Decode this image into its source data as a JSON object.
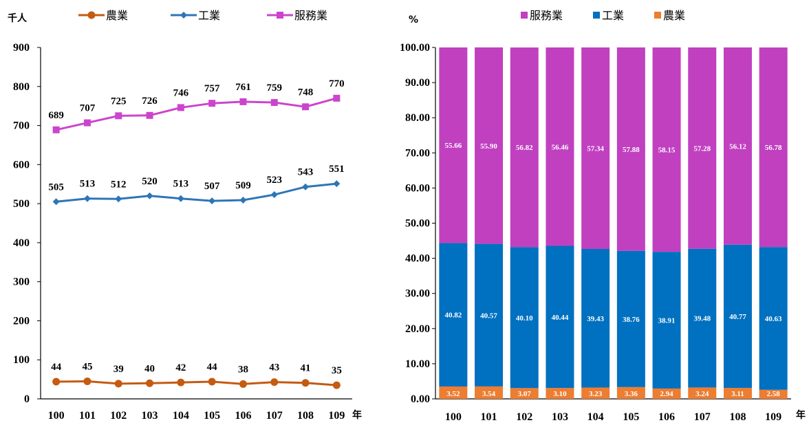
{
  "chart_data": [
    {
      "type": "line",
      "ylabel": "千人",
      "xunit": "年",
      "categories": [
        "100",
        "101",
        "102",
        "103",
        "104",
        "105",
        "106",
        "107",
        "108",
        "109"
      ],
      "ylim": [
        0,
        900
      ],
      "yticks": [
        "0",
        "100",
        "200",
        "300",
        "400",
        "500",
        "600",
        "700",
        "800",
        "900"
      ],
      "legend_position": "top",
      "series": [
        {
          "name": "農業",
          "color": "#c55a11",
          "marker": "circle",
          "values": [
            44,
            45,
            39,
            40,
            42,
            44,
            38,
            43,
            41,
            35
          ]
        },
        {
          "name": "工業",
          "color": "#2e75b6",
          "marker": "diamond",
          "values": [
            505,
            513,
            512,
            520,
            513,
            507,
            509,
            523,
            543,
            551
          ]
        },
        {
          "name": "服務業",
          "color": "#cc44cc",
          "marker": "square",
          "values": [
            689,
            707,
            725,
            726,
            746,
            757,
            761,
            759,
            748,
            770
          ]
        }
      ]
    },
    {
      "type": "bar",
      "stacked": true,
      "ylabel": "%",
      "xunit": "年",
      "categories": [
        "100",
        "101",
        "102",
        "103",
        "104",
        "105",
        "106",
        "107",
        "108",
        "109"
      ],
      "ylim": [
        0,
        100
      ],
      "yticks": [
        "0.00",
        "10.00",
        "20.00",
        "30.00",
        "40.00",
        "50.00",
        "60.00",
        "70.00",
        "80.00",
        "90.00",
        "100.00"
      ],
      "legend_position": "top",
      "legend_order": [
        "服務業",
        "工業",
        "農業"
      ],
      "series": [
        {
          "name": "農業",
          "color": "#ed7d31",
          "values": [
            "3.52",
            "3.54",
            "3.07",
            "3.10",
            "3.23",
            "3.36",
            "2.94",
            "3.24",
            "3.11",
            "2.58"
          ]
        },
        {
          "name": "工業",
          "color": "#0070c0",
          "values": [
            "40.82",
            "40.57",
            "40.10",
            "40.44",
            "39.43",
            "38.76",
            "38.91",
            "39.48",
            "40.77",
            "40.63"
          ]
        },
        {
          "name": "服務業",
          "color": "#c040c0",
          "values": [
            "55.66",
            "55.90",
            "56.82",
            "56.46",
            "57.34",
            "57.88",
            "58.15",
            "57.28",
            "56.12",
            "56.78"
          ]
        }
      ]
    }
  ]
}
